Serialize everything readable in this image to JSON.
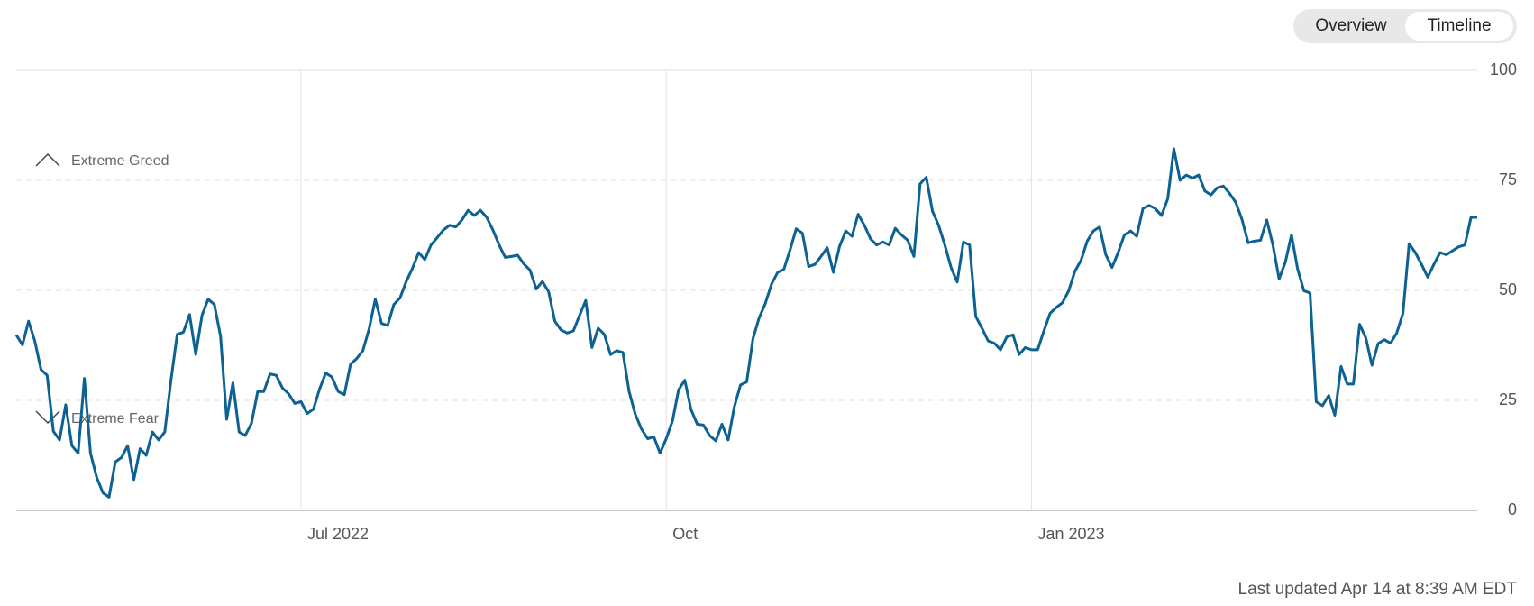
{
  "toggle": {
    "options": [
      "Overview",
      "Timeline"
    ],
    "selected": "Timeline"
  },
  "chart_data": {
    "type": "line",
    "series": [
      {
        "color": "#0d6292",
        "values": [
          39.9,
          37.6,
          43,
          38.5,
          32,
          30.7,
          18,
          16,
          24,
          14.7,
          13,
          30,
          13,
          7.5,
          4,
          3,
          11,
          12,
          14.7,
          7,
          14,
          12.5,
          17.8,
          16,
          17.8,
          29.6,
          40,
          40.5,
          44.5,
          35.4,
          44.3,
          48,
          46.8,
          39.6,
          20.7,
          29,
          17.8,
          17,
          19.8,
          27,
          27,
          31,
          30.7,
          27.8,
          26.5,
          24.3,
          24.7,
          22,
          23,
          27.6,
          31.2,
          30.3,
          27,
          26.3,
          33.2,
          34.5,
          36.3,
          41.2,
          48,
          42.5,
          42,
          46.8,
          48.3,
          52,
          55,
          58.6,
          57,
          60.3,
          62,
          63.7,
          64.8,
          64.4,
          66,
          68.2,
          67,
          68.2,
          66.6,
          63.7,
          60.3,
          57.5,
          57.7,
          58,
          56,
          54.6,
          50.3,
          52,
          49.7,
          43,
          41,
          40.3,
          40.8,
          44.3,
          47.7,
          37,
          41.4,
          40,
          35.4,
          36.3,
          35.9,
          27,
          21.8,
          18.5,
          16.3,
          16.7,
          13,
          16.3,
          20.3,
          27.4,
          29.6,
          22.9,
          19.6,
          19.4,
          17,
          15.8,
          19.6,
          16,
          23.6,
          28.5,
          29.2,
          39,
          43.7,
          47,
          51.4,
          54.1,
          54.8,
          59.2,
          64,
          63,
          55.4,
          55.9,
          57.7,
          59.7,
          54.1,
          60,
          63.5,
          62.3,
          67.3,
          64.8,
          61.7,
          60.3,
          61,
          60.3,
          64.1,
          62.6,
          61.4,
          57.7,
          74.2,
          75.7,
          68,
          64.8,
          60.3,
          55.2,
          51.9,
          61,
          60.3,
          44.1,
          41.4,
          38.5,
          38,
          36.5,
          39.4,
          39.9,
          35.4,
          37,
          36.5,
          36.5,
          40.8,
          44.8,
          46.1,
          47.2,
          49.9,
          54.3,
          56.8,
          61.2,
          63.5,
          64.4,
          58.1,
          55.2,
          58.6,
          62.6,
          63.5,
          62.3,
          68.6,
          69.3,
          68.6,
          67,
          70.8,
          82.2,
          75,
          76.2,
          75.5,
          76.2,
          72.6,
          71.7,
          73.3,
          73.7,
          72,
          70,
          66.1,
          60.8,
          61.2,
          61.4,
          66,
          60.3,
          52.6,
          56.4,
          62.6,
          54.8,
          49.9,
          49.4,
          24.7,
          23.8,
          26.1,
          21.6,
          32.7,
          28.7,
          28.7,
          42.3,
          39.2,
          33,
          37.9,
          38.8,
          38,
          40.3,
          44.8,
          60.6,
          58.6,
          55.9,
          53,
          55.9,
          58.6,
          58.1,
          59,
          59.9,
          60.3,
          66.6,
          66.6
        ]
      }
    ],
    "xlim": [
      0,
      236
    ],
    "xticks": [
      {
        "value": 46,
        "label": "Jul 2022"
      },
      {
        "value": 105,
        "label": "Oct"
      },
      {
        "value": 164,
        "label": "Jan 2023"
      }
    ],
    "ylim": [
      0,
      100
    ],
    "yticks": [
      0,
      25,
      50,
      75,
      100
    ],
    "grid": true,
    "annotations": [
      "Extreme Greed",
      "Extreme Fear"
    ]
  },
  "footer": "Last updated Apr 14 at 8:39 AM EDT"
}
